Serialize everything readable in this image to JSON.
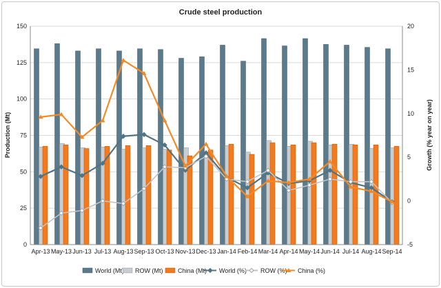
{
  "chart_data": {
    "type": "bar",
    "title": "Crude steel production",
    "ylabel": "Production (Mt)",
    "y2label": "Growth (% year on year)",
    "ylim": [
      0,
      150
    ],
    "y2lim": [
      -5,
      20
    ],
    "yticks": [
      0,
      25,
      50,
      75,
      100,
      125,
      150
    ],
    "y2ticks": [
      -5,
      0,
      5,
      10,
      15,
      20
    ],
    "categories": [
      "Apr-13",
      "May-13",
      "Jun-13",
      "Jul-13",
      "Aug-13",
      "Sep-13",
      "Oct-13",
      "Nov-13",
      "Dec-13",
      "Jan-14",
      "Feb-14",
      "Mar-14",
      "Apr-14",
      "May-14",
      "Jun-14",
      "Jul-14",
      "Aug-14",
      "Sep-14"
    ],
    "grid": true,
    "legend_position": "bottom",
    "colors": {
      "world_bar": "#5b7a8c",
      "row_bar": "#c8cdd0",
      "china_bar": "#f47a20",
      "world_line": "#4f7486",
      "row_line": "#c0c4c8",
      "china_line": "#f58a24"
    },
    "series": [
      {
        "name": "World (Mt)",
        "kind": "bar",
        "axis": "left",
        "values": [
          134.5,
          138,
          133,
          134.5,
          133,
          134.5,
          134,
          128,
          129,
          137,
          126,
          141.5,
          136.5,
          141.5,
          137.5,
          137,
          135.5,
          134.5
        ]
      },
      {
        "name": "ROW (Mt)",
        "kind": "bar",
        "axis": "left",
        "values": [
          67,
          69.5,
          66.5,
          67,
          65.5,
          66.5,
          65.5,
          66.5,
          63.5,
          68,
          63.5,
          71.5,
          67.5,
          71,
          68.5,
          69,
          66,
          66.5
        ]
      },
      {
        "name": "China (Mt)",
        "kind": "bar",
        "axis": "left",
        "values": [
          67.5,
          68.5,
          66,
          67.5,
          68,
          68,
          65,
          61,
          65,
          69,
          62,
          70,
          68.5,
          70,
          69,
          68.5,
          68.5,
          67.5
        ]
      },
      {
        "name": "World (%)",
        "kind": "line",
        "axis": "right",
        "values": [
          2.8,
          3.9,
          2.9,
          4.3,
          7.4,
          7.6,
          6.4,
          3.5,
          5.5,
          2.7,
          1.5,
          3.2,
          2.0,
          2.3,
          3.5,
          2.1,
          1.5,
          -0.1
        ]
      },
      {
        "name": "ROW (%)",
        "kind": "line",
        "axis": "right",
        "values": [
          -3.1,
          -1.4,
          -1.1,
          0.0,
          -0.3,
          1.4,
          3.9,
          3.8,
          5.1,
          2.5,
          2.2,
          3.5,
          1.2,
          1.8,
          2.5,
          2.2,
          2.2,
          -0.2
        ]
      },
      {
        "name": "China (%)",
        "kind": "line",
        "axis": "right",
        "values": [
          9.6,
          9.9,
          7.3,
          9.2,
          16.1,
          14.6,
          9.2,
          4.0,
          6.5,
          2.8,
          0.5,
          2.3,
          2.1,
          2.5,
          4.5,
          1.6,
          1.1,
          -0.1
        ]
      }
    ]
  }
}
